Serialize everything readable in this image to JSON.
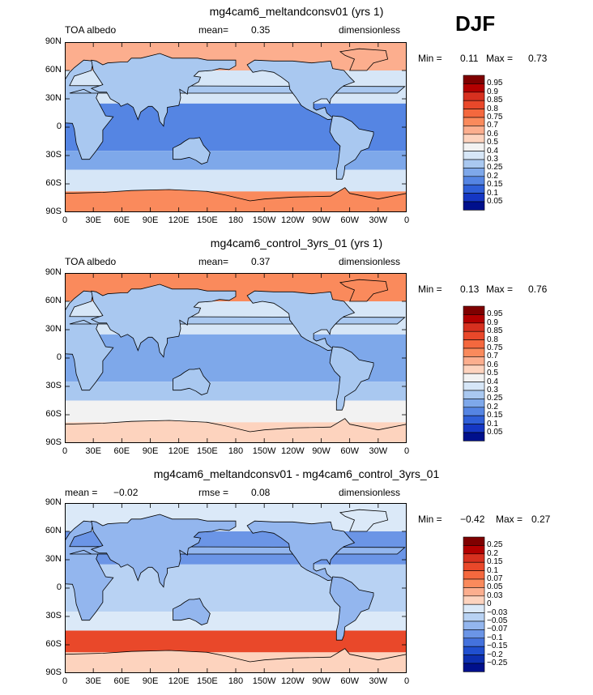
{
  "season": "DJF",
  "panels": [
    {
      "id": "p1",
      "title": "mg4cam6_meltandconsv01 (yrs 1)",
      "left_label": "TOA albedo",
      "mid_label": "mean=",
      "mid_value": "0.35",
      "right_label": "dimensionless",
      "min_label": "Min =",
      "min_value": "0.11",
      "max_label": "Max =",
      "max_value": "0.73"
    },
    {
      "id": "p2",
      "title": "mg4cam6_control_3yrs_01 (yrs 1)",
      "left_label": "TOA albedo",
      "mid_label": "mean=",
      "mid_value": "0.37",
      "right_label": "dimensionless",
      "min_label": "Min =",
      "min_value": "0.13",
      "max_label": "Max =",
      "max_value": "0.76"
    },
    {
      "id": "p3",
      "title": "mg4cam6_meltandconsv01 - mg4cam6_control_3yrs_01",
      "left_label": "mean =",
      "left_value": "−0.02",
      "mid_label": "rmse =",
      "mid_value": "0.08",
      "right_label": "dimensionless",
      "min_label": "Min =",
      "min_value": "−0.42",
      "max_label": "Max =",
      "max_value": "0.27"
    }
  ],
  "lat_ticks": [
    "90N",
    "60N",
    "30N",
    "0",
    "30S",
    "60S",
    "90S"
  ],
  "lon_ticks": [
    "0",
    "30E",
    "60E",
    "90E",
    "120E",
    "150E",
    "180",
    "150W",
    "120W",
    "90W",
    "60W",
    "30W",
    "0"
  ],
  "colorbar_abs": {
    "labels": [
      "0.95",
      "0.9",
      "0.85",
      "0.8",
      "0.75",
      "0.7",
      "0.6",
      "0.5",
      "0.4",
      "0.3",
      "0.25",
      "0.2",
      "0.15",
      "0.1",
      "0.05"
    ],
    "colors": [
      "#7f0000",
      "#b30000",
      "#d7301f",
      "#e9482a",
      "#f4683e",
      "#fa8a5c",
      "#fcae8e",
      "#fdd3be",
      "#f2f2f2",
      "#d6e6f7",
      "#a9c8f0",
      "#7ea8ea",
      "#5585e3",
      "#2f5fd8",
      "#1537c4",
      "#00108c"
    ]
  },
  "colorbar_diff": {
    "labels": [
      "0.25",
      "0.2",
      "0.15",
      "0.1",
      "0.07",
      "0.05",
      "0.03",
      "0",
      "−0.03",
      "−0.05",
      "−0.07",
      "−0.1",
      "−0.15",
      "−0.2",
      "−0.25"
    ],
    "colors": [
      "#7f0000",
      "#b30000",
      "#d7301f",
      "#e9482a",
      "#f4683e",
      "#fa8a5c",
      "#fcae8e",
      "#fdd3be",
      "#dbe9f8",
      "#b8d2f3",
      "#93b6ee",
      "#6b95e6",
      "#4472dd",
      "#204fcf",
      "#0d2fb0",
      "#00108c"
    ]
  },
  "field_colors": {
    "p1": {
      "polar_n": "#fcae8e",
      "midlat_n": "#d6e6f7",
      "tropics": "#5585e3",
      "subtrop_s": "#7ea8ea",
      "midlat_s": "#d6e6f7",
      "polar_s": "#fa8a5c",
      "land": "#a9c8f0"
    },
    "p2": {
      "polar_n": "#fa8a5c",
      "midlat_n": "#d6e6f7",
      "tropics": "#7ea8ea",
      "subtrop_s": "#a9c8f0",
      "midlat_s": "#f2f2f2",
      "polar_s": "#fdd3be",
      "land": "#a9c8f0"
    },
    "p3": {
      "polar_n": "#dbe9f8",
      "midlat_n": "#6b95e6",
      "tropics": "#b8d2f3",
      "subtrop_s": "#dbe9f8",
      "midlat_s": "#e9482a",
      "polar_s": "#fdd3be",
      "land": "#93b6ee"
    }
  }
}
